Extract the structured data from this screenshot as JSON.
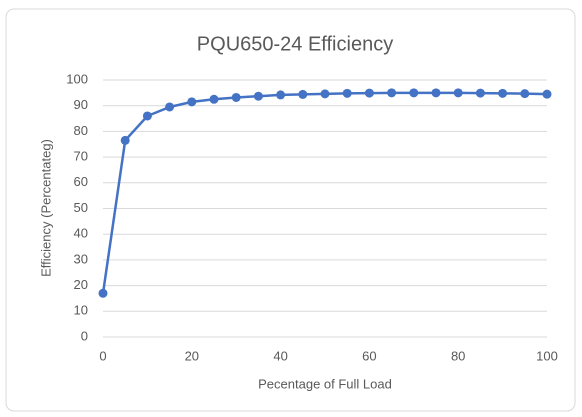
{
  "chart_data": {
    "type": "line",
    "title": "PQU650-24 Efficiency",
    "x_label": "Pecentage of Full Load",
    "y_label": "Efficiency (Percentateg)",
    "x": [
      0,
      5,
      10,
      15,
      20,
      25,
      30,
      35,
      40,
      45,
      50,
      55,
      60,
      65,
      70,
      75,
      80,
      85,
      90,
      95,
      100
    ],
    "values": [
      17,
      76.5,
      86,
      89.5,
      91.5,
      92.5,
      93.2,
      93.7,
      94.2,
      94.4,
      94.6,
      94.8,
      94.9,
      95,
      95,
      95,
      95,
      94.9,
      94.8,
      94.7,
      94.5
    ],
    "color": "#4472c4",
    "xlim": [
      0,
      100
    ],
    "xticks": [
      0,
      20,
      40,
      60,
      80,
      100
    ],
    "ylim": [
      0,
      100
    ],
    "yticks": [
      0,
      10,
      20,
      30,
      40,
      50,
      60,
      70,
      80,
      90,
      100
    ],
    "grid": true,
    "markers": true
  }
}
